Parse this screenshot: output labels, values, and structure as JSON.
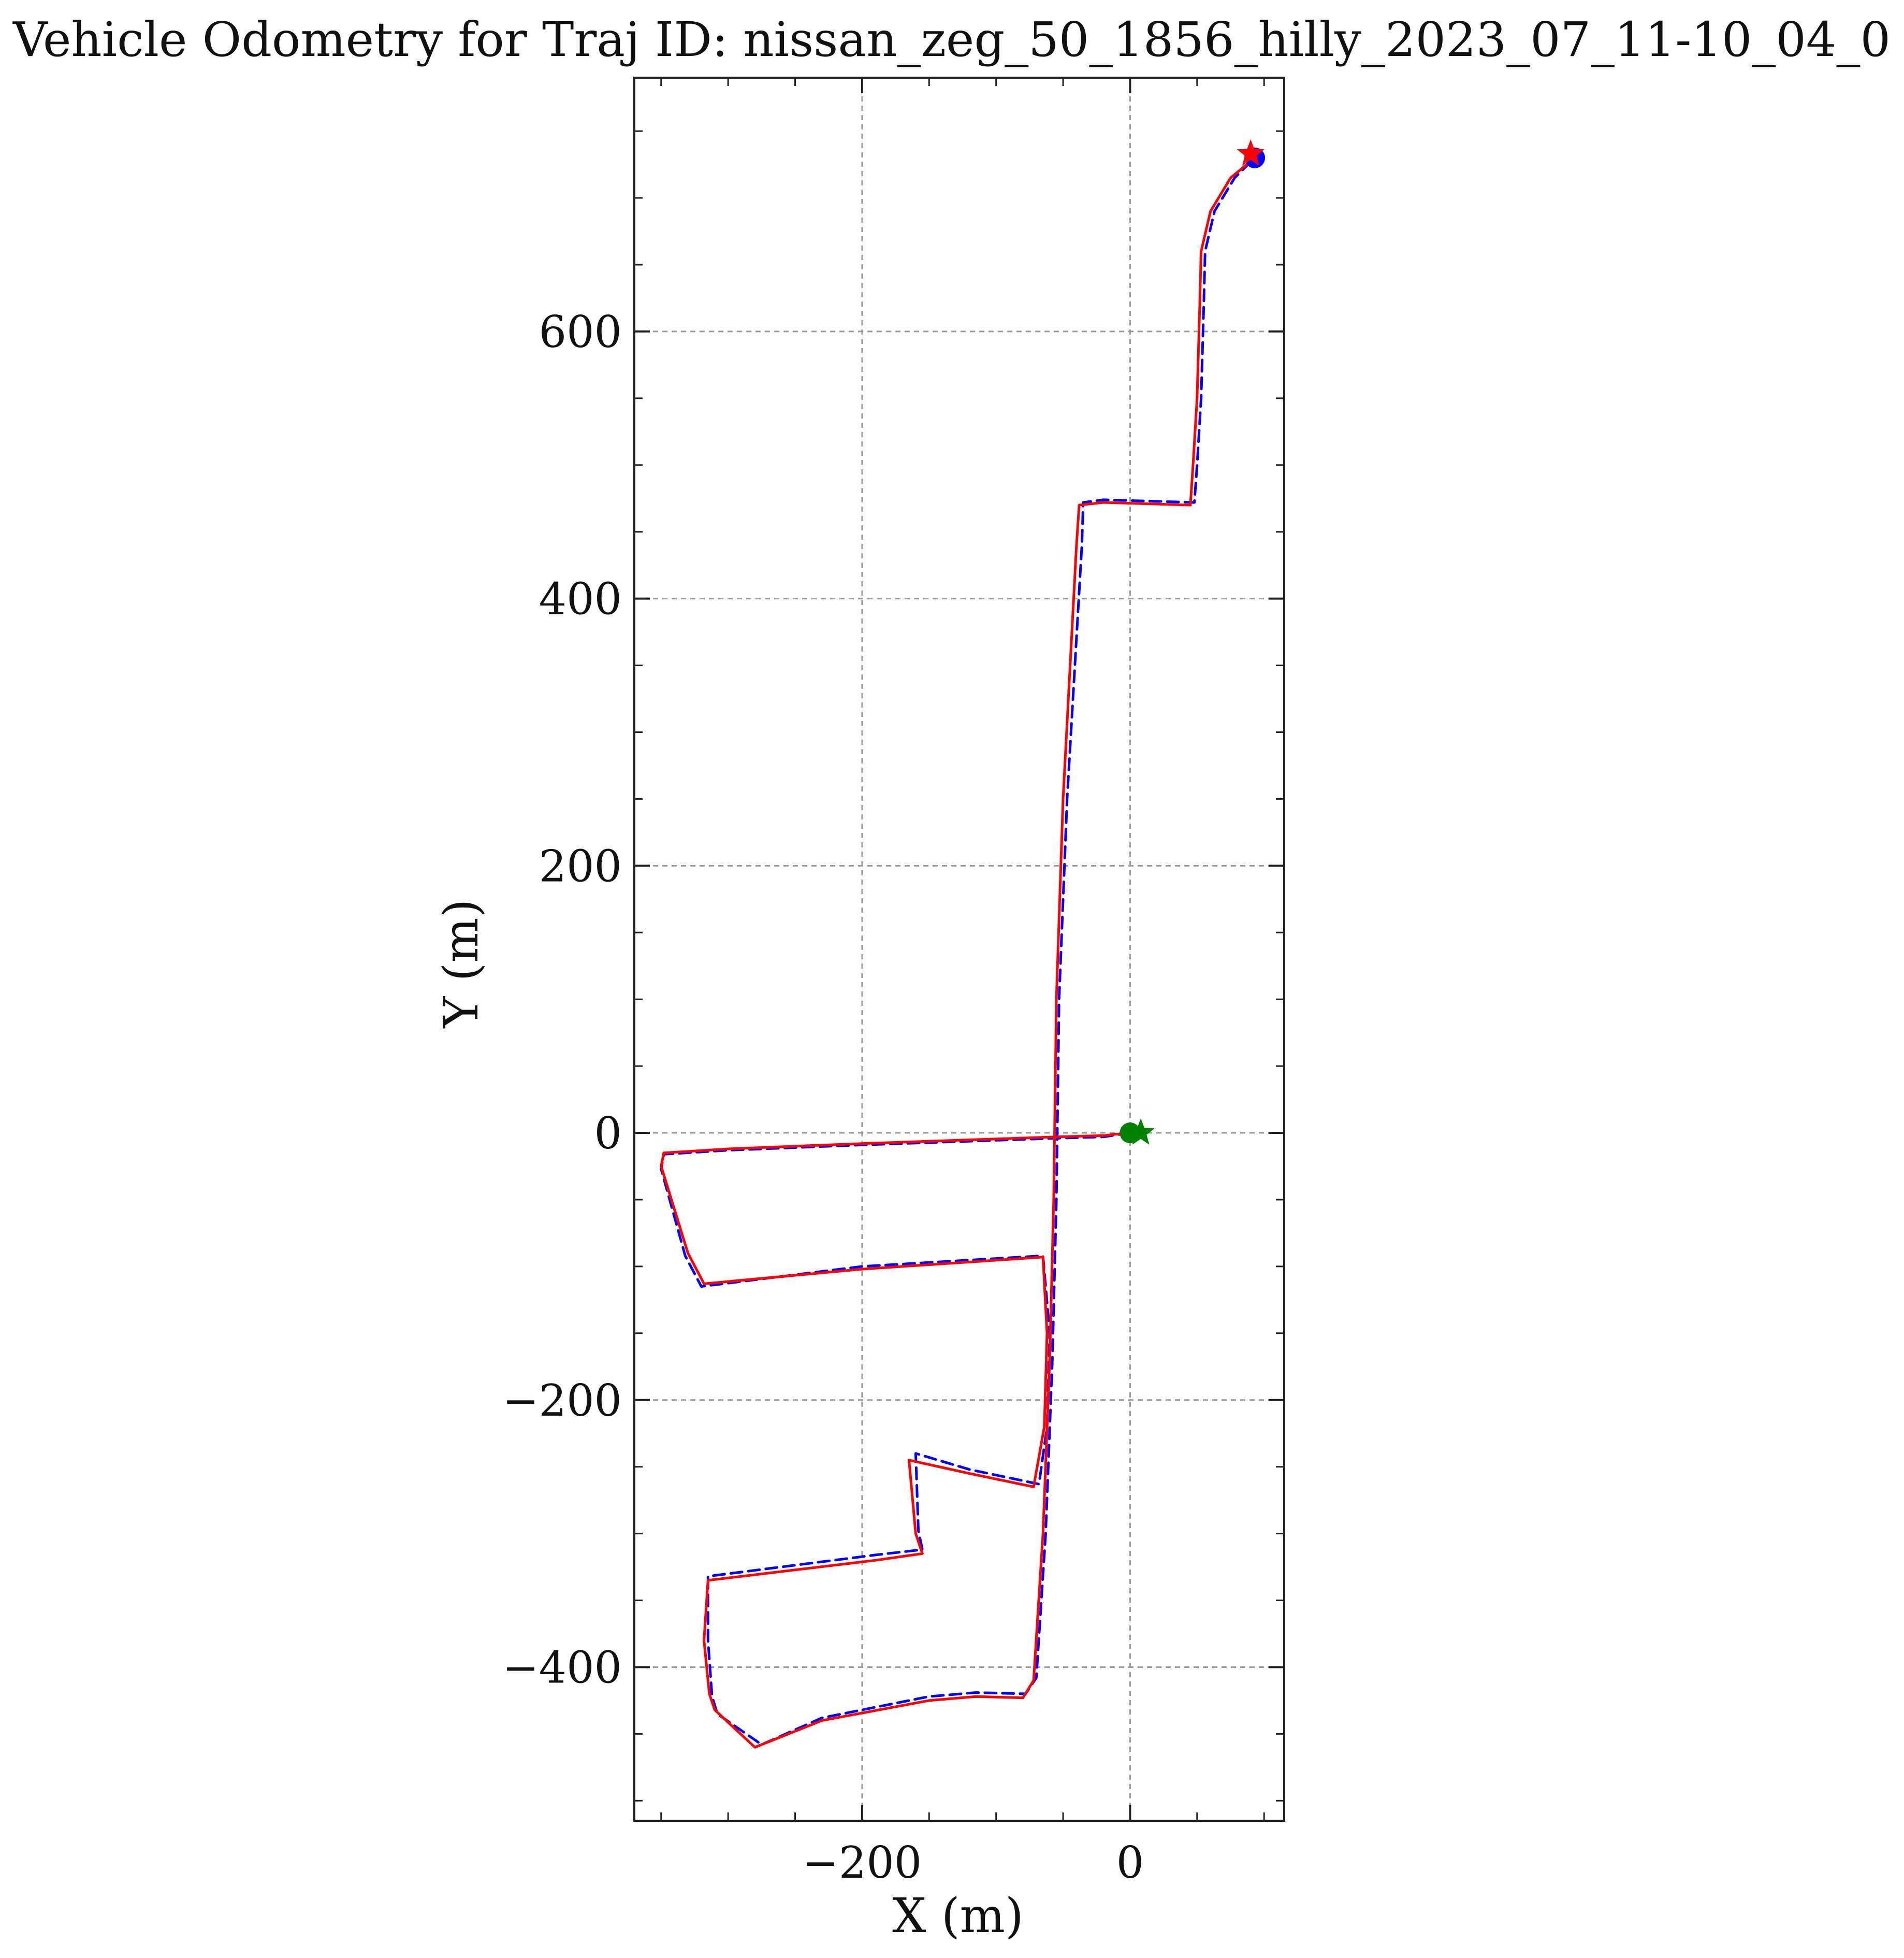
{
  "chart_data": {
    "type": "line",
    "title": "Vehicle Odometry for Traj ID: nissan_zeg_50_1856_hilly_2023_07_11-10_04_0",
    "xlabel": "X (m)",
    "ylabel": "Y (m)",
    "xlim": [
      -370,
      115
    ],
    "ylim": [
      -515,
      790
    ],
    "x_ticks": [
      -200,
      0
    ],
    "y_ticks": [
      -400,
      -200,
      0,
      200,
      400,
      600
    ],
    "x_tick_labels": [
      "−200",
      "0"
    ],
    "y_tick_labels": [
      "−400",
      "−200",
      "0",
      "200",
      "400",
      "600"
    ],
    "grid": true,
    "legend": "none",
    "series": [
      {
        "color": "#ff0000",
        "style": "solid",
        "x": [
          0,
          -20,
          -55,
          -200,
          -300,
          -348,
          -350,
          -330,
          -318,
          -200,
          -65,
          -62,
          -64,
          -72,
          -120,
          -165,
          -160,
          -155,
          -190,
          -315,
          -318,
          -314,
          -310,
          -280,
          -230,
          -150,
          -115,
          -80,
          -72,
          -65,
          -60,
          -57,
          -55,
          -50,
          -40,
          -38,
          -20,
          45,
          47,
          50,
          52,
          53,
          60,
          75,
          93
        ],
        "y": [
          0,
          -2,
          -3,
          -8,
          -12,
          -15,
          -25,
          -90,
          -113,
          -102,
          -93,
          -150,
          -220,
          -265,
          -255,
          -245,
          -300,
          -315,
          -320,
          -335,
          -380,
          -420,
          -432,
          -460,
          -440,
          -425,
          -422,
          -423,
          -410,
          -300,
          -170,
          -50,
          100,
          250,
          440,
          470,
          472,
          470,
          500,
          550,
          620,
          660,
          690,
          715,
          730
        ]
      },
      {
        "color": "#0000ff",
        "style": "dashed",
        "x": [
          0,
          -20,
          -55,
          -200,
          -300,
          -348,
          -350,
          -332,
          -320,
          -200,
          -65,
          -60,
          -62,
          -68,
          -120,
          -160,
          -158,
          -155,
          -190,
          -315,
          -315,
          -312,
          -308,
          -275,
          -230,
          -150,
          -115,
          -78,
          -70,
          -63,
          -58,
          -55,
          -53,
          -47,
          -36,
          -35,
          -20,
          48,
          50,
          53,
          55,
          56,
          63,
          78,
          93
        ],
        "y": [
          0,
          -3,
          -4,
          -9,
          -13,
          -16,
          -27,
          -92,
          -115,
          -100,
          -92,
          -150,
          -220,
          -263,
          -252,
          -240,
          -298,
          -312,
          -316,
          -332,
          -380,
          -422,
          -435,
          -458,
          -438,
          -422,
          -419,
          -420,
          -408,
          -300,
          -170,
          -50,
          100,
          250,
          440,
          472,
          474,
          472,
          500,
          550,
          620,
          660,
          690,
          715,
          730
        ]
      }
    ],
    "markers": [
      {
        "shape": "circle",
        "color": "#008000",
        "x": 0,
        "y": 0
      },
      {
        "shape": "star",
        "color": "#008000",
        "x": 8,
        "y": 0
      },
      {
        "shape": "circle",
        "color": "#0000ff",
        "x": 93,
        "y": 730
      },
      {
        "shape": "star",
        "color": "#ff0000",
        "x": 90,
        "y": 733
      }
    ]
  }
}
